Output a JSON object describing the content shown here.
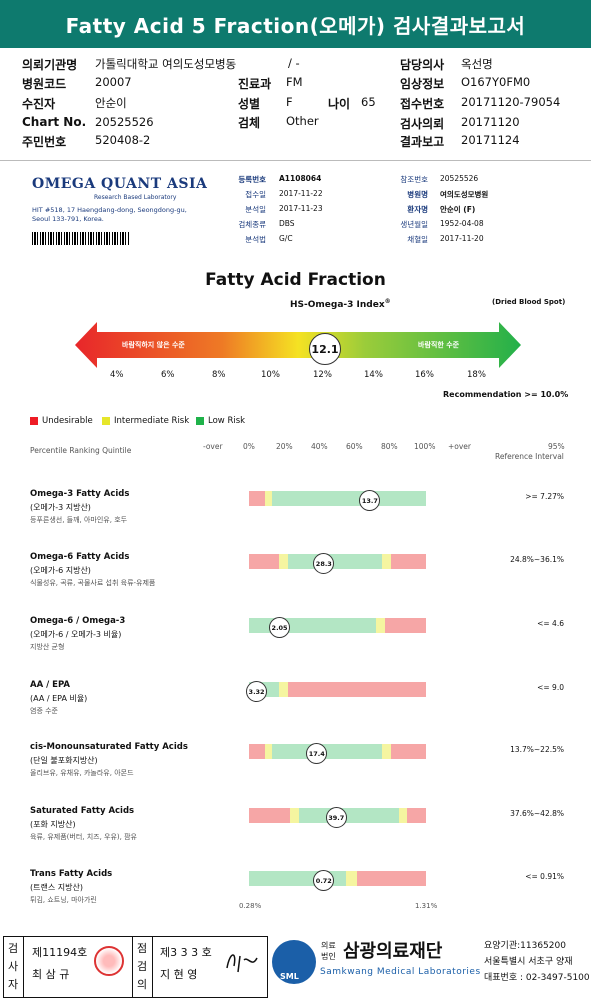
{
  "header": {
    "title": "Fatty Acid 5 Fraction(오메가) 검사결과보고서"
  },
  "info": {
    "institution_label": "의뢰기관명",
    "institution": "가톨릭대학교 여의도성모병동",
    "ward": "/ -",
    "doctor_label": "담당의사",
    "doctor": "옥선명",
    "code_label": "병원코드",
    "code": "20007",
    "dept_label": "진료과",
    "dept": "FM",
    "clinical_label": "임상정보",
    "clinical": "O167Y0FM0",
    "patient_label": "수진자",
    "patient": "안순이",
    "sex_label": "성별",
    "sex": "F",
    "age_label": "나이",
    "age": "65",
    "receipt_label": "접수번호",
    "receipt": "20171120-79054",
    "chart_label": "Chart No.",
    "chart": "20525526",
    "test_label": "검체",
    "test": "Other",
    "request_label": "검사의뢰",
    "request": "20171120",
    "id_label": "주민번호",
    "id": "520408-2",
    "report_label": "결과보고",
    "report": "20171124"
  },
  "lab": {
    "name": "OMEGA QUANT ASIA",
    "sub": "Research Based Laboratory",
    "addr1": "HIT #518, 17 Haengdang-dong, Seongdong-gu,",
    "addr2": "Seoul 133-791, Korea."
  },
  "report_meta": {
    "reg_label": "등록번호",
    "reg": "A1108064",
    "ref_no_label": "참조번호",
    "ref_no": "20525526",
    "recv_label": "접수일",
    "recv": "2017-11-22",
    "hosp_label": "병원명",
    "hosp": "여의도성모병원",
    "anal_label": "분석일",
    "anal": "2017-11-23",
    "pt_label": "환자명",
    "pt": "안순이 (F)",
    "spec_label": "검체종류",
    "spec": "DBS",
    "dob_label": "생년월일",
    "dob": "1952-04-08",
    "method_label": "분석법",
    "method": "G/C",
    "col_label": "채혈일",
    "col": "2017-11-20"
  },
  "fraction": {
    "title": "Fatty Acid Fraction",
    "index": "HS-Omega-3 Index",
    "index_sup": "®",
    "dbs": "(Dried Blood Spot)",
    "bad": "바람직하지 않은 수준",
    "good": "바람직한 수준",
    "value": "12.1",
    "ticks": [
      "4%",
      "6%",
      "8%",
      "10%",
      "12%",
      "14%",
      "16%",
      "18%"
    ],
    "recommendation": "Recommendation  >= 10.0%"
  },
  "legend": {
    "undesirable": "Undesirable",
    "intermediate": "Intermediate Risk",
    "low": "Low Risk",
    "colors": {
      "red": "#ee1c25",
      "yellow": "#e6e62a",
      "green": "#1fb24a"
    }
  },
  "percentile": {
    "label": "Percentile Ranking Quintile",
    "ticks": [
      "-over",
      "0%",
      "20%",
      "40%",
      "60%",
      "80%",
      "100%",
      "+over"
    ],
    "ref1": "95%",
    "ref2": "Reference Interval"
  },
  "rows": [
    {
      "title": "Omega-3 Fatty Acids",
      "sub": "(오메가-3 지방산)",
      "note": "등푸른생선, 들깨, 아마인유, 호두",
      "value": "13.7",
      "ref": ">= 7.27%",
      "marker": 0.68
    },
    {
      "title": "Omega-6 Fatty Acids",
      "sub": "(오메가-6 지방산)",
      "note": "식물성유, 곡류, 곡물사료 섭취 육류-유제품",
      "value": "28.3",
      "ref": "24.8%~36.1%",
      "marker": 0.42
    },
    {
      "title": "Omega-6 / Omega-3",
      "sub": "(오메가-6 / 오메가-3 비율)",
      "note": "지방산 균형",
      "value": "2.05",
      "ref": "<= 4.6",
      "marker": 0.17
    },
    {
      "title": "AA / EPA",
      "sub": "(AA / EPA 비율)",
      "note": "염증 수준",
      "value": "3.32",
      "ref": "<= 9.0",
      "marker": 0.04
    },
    {
      "title": "cis-Monounsaturated Fatty Acids",
      "sub": "(단일 불포화지방산)",
      "note": "올리브유, 유채유, 카놀라유, 아몬드",
      "value": "17.4",
      "ref": "13.7%~22.5%",
      "marker": 0.38
    },
    {
      "title": "Saturated Fatty Acids",
      "sub": "(포화 지방산)",
      "note": "육류, 유제품(버터, 치즈, 우유), 팜유",
      "value": "39.7",
      "ref": "37.6%~42.8%",
      "marker": 0.49
    },
    {
      "title": "Trans Fatty Acids",
      "sub": "(트랜스 지방산)",
      "note": "튀김, 쇼트닝, 마아가린",
      "value": "0.72",
      "ref": "<= 0.91%",
      "marker": 0.42
    }
  ],
  "trans_min": "0.28%",
  "trans_max": "1.31%",
  "footer": {
    "c1": "검",
    "c2": "사",
    "c3": "자",
    "no1": "제11194호",
    "name1": "최 삼 규",
    "d1": "점",
    "d2": "검",
    "d3": "의",
    "no2": "제3 3 3 호",
    "name2": "지 현 영",
    "org_a": "의료",
    "org_b": "법인",
    "org": "삼광의료재단",
    "org_en": "Samkwang Medical Laboratories",
    "sml": "SML",
    "code": "요양기관:11365200",
    "addr": "서울특별시 서초구 양재",
    "tel": "대표번호 : 02-3497-5100"
  }
}
